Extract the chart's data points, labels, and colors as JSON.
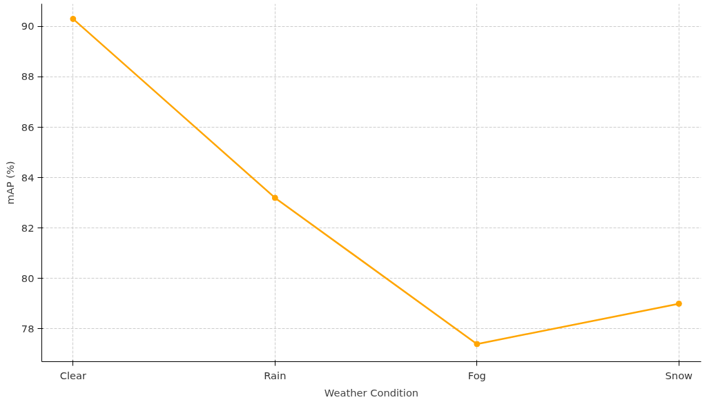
{
  "chart_data": {
    "type": "line",
    "xlabel": "Weather Condition",
    "ylabel": "mAP (%)",
    "categories": [
      "Clear",
      "Rain",
      "Fog",
      "Snow"
    ],
    "series": [
      {
        "color": "#ffa500",
        "values": [
          90.3,
          83.2,
          77.4,
          79.0
        ]
      }
    ],
    "ylim": [
      76.7,
      90.9
    ],
    "yticks": [
      78,
      80,
      82,
      84,
      86,
      88,
      90
    ],
    "grid": true,
    "marker": "circle",
    "line_style": "solid"
  }
}
